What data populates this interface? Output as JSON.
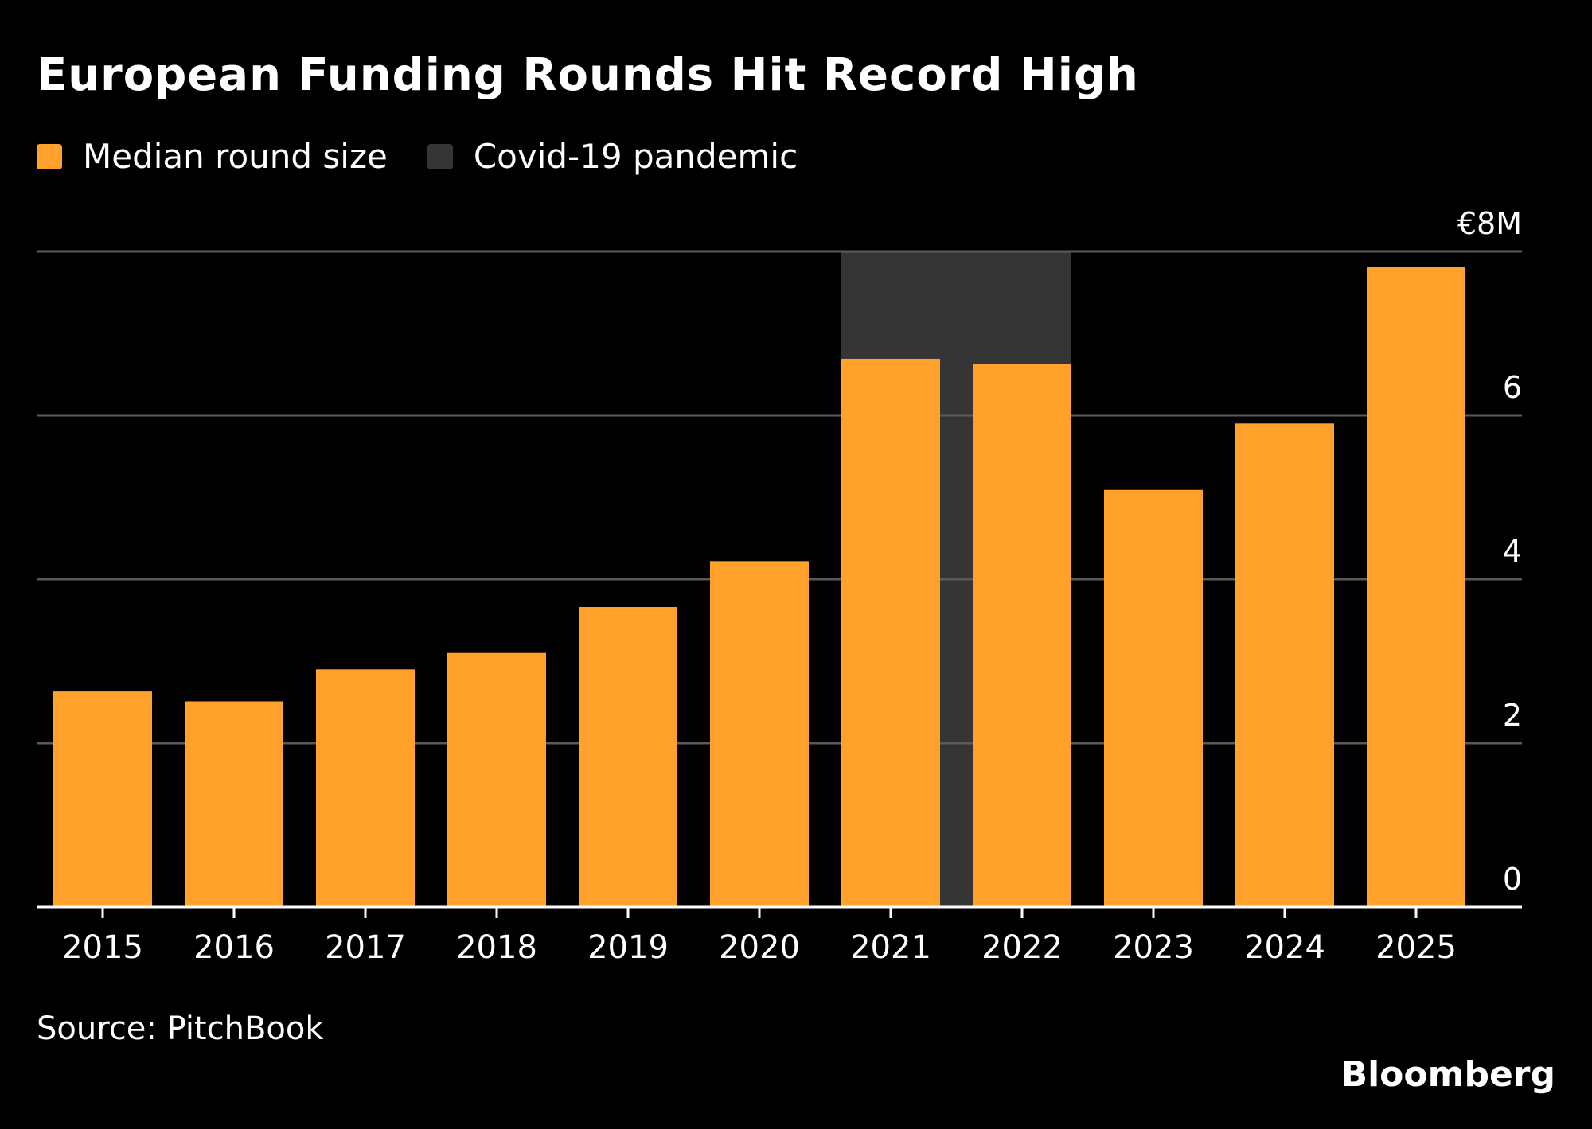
{
  "chart_data": {
    "type": "bar",
    "title": "European Funding Rounds Hit Record High",
    "categories": [
      "2015",
      "2016",
      "2017",
      "2018",
      "2019",
      "2020",
      "2021",
      "2022",
      "2023",
      "2024",
      "2025"
    ],
    "series": [
      {
        "name": "Median round size",
        "values": [
          2.63,
          2.51,
          2.9,
          3.1,
          3.66,
          4.22,
          6.69,
          6.63,
          5.09,
          5.9,
          7.81
        ]
      }
    ],
    "shaded_region": {
      "name": "Covid-19 pandemic",
      "from": "2021",
      "to": "2022"
    },
    "ylim": [
      0,
      8
    ],
    "yticks": [
      0,
      2,
      4,
      6,
      8
    ],
    "ytick_labels": [
      "0",
      "2",
      "4",
      "6",
      "€8M"
    ],
    "xlabel": "",
    "ylabel": "",
    "grid": true,
    "legend": "top-left",
    "colors": {
      "bar": "#FFA12B",
      "shade": "#353535",
      "grid": "#5a5a5a",
      "axis": "#ffffff"
    }
  },
  "legend": {
    "median": "Median round size",
    "covid": "Covid-19 pandemic"
  },
  "source": "Source: PitchBook",
  "brand": "Bloomberg"
}
